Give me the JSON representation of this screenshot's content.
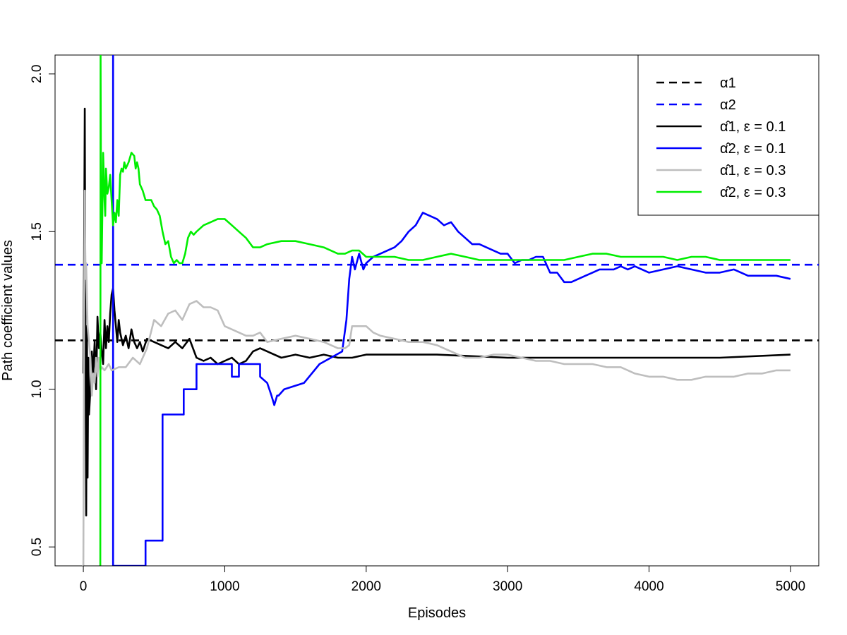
{
  "chart_data": {
    "type": "line",
    "title": "",
    "xlabel": "Episodes",
    "ylabel": "Path coefficient values",
    "xlim": [
      -200,
      5200
    ],
    "ylim": [
      0.44,
      2.06
    ],
    "x_ticks": [
      "0",
      "1000",
      "2000",
      "3000",
      "4000",
      "5000"
    ],
    "y_ticks": [
      "0.5",
      "1.0",
      "1.5",
      "2.0"
    ],
    "legend_position": "top-right",
    "reference_lines": [
      {
        "name": "α1",
        "y": 1.155,
        "color": "#000000",
        "style": "dashed"
      },
      {
        "name": "α2",
        "y": 1.395,
        "color": "#0000ff",
        "style": "dashed"
      }
    ],
    "series": [
      {
        "name": "α̂1, ε = 0.1",
        "color": "#000000",
        "x": [
          0,
          5,
          10,
          15,
          20,
          25,
          30,
          35,
          40,
          50,
          60,
          70,
          80,
          90,
          100,
          110,
          120,
          130,
          140,
          150,
          160,
          170,
          180,
          190,
          200,
          210,
          220,
          230,
          240,
          250,
          260,
          280,
          300,
          320,
          340,
          360,
          380,
          400,
          420,
          450,
          500,
          550,
          600,
          650,
          700,
          750,
          800,
          850,
          900,
          950,
          1000,
          1050,
          1100,
          1150,
          1200,
          1250,
          1300,
          1400,
          1500,
          1600,
          1700,
          1800,
          1900,
          2000,
          2500,
          3000,
          3500,
          4000,
          4500,
          5000
        ],
        "y": [
          1.05,
          1.4,
          1.89,
          1.15,
          0.6,
          1.2,
          0.72,
          1.1,
          0.92,
          1.0,
          1.12,
          1.05,
          1.15,
          1.0,
          1.23,
          1.13,
          1.18,
          1.12,
          1.08,
          1.22,
          1.13,
          1.2,
          1.15,
          1.24,
          1.3,
          1.32,
          1.25,
          1.2,
          1.15,
          1.22,
          1.18,
          1.14,
          1.17,
          1.13,
          1.19,
          1.15,
          1.13,
          1.15,
          1.12,
          1.16,
          1.15,
          1.14,
          1.13,
          1.15,
          1.13,
          1.16,
          1.1,
          1.09,
          1.1,
          1.08,
          1.09,
          1.1,
          1.08,
          1.09,
          1.12,
          1.13,
          1.12,
          1.1,
          1.11,
          1.1,
          1.11,
          1.1,
          1.1,
          1.11,
          1.11,
          1.1,
          1.1,
          1.1,
          1.1,
          1.11
        ]
      },
      {
        "name": "α̂2, ε = 0.1",
        "color": "#0000ff",
        "x": [
          210,
          210,
          215,
          440,
          440,
          560,
          560,
          710,
          710,
          800,
          800,
          820,
          820,
          950,
          950,
          1050,
          1050,
          1100,
          1100,
          1250,
          1250,
          1300,
          1330,
          1350,
          1370,
          1380,
          1420,
          1420,
          1560,
          1560,
          1670,
          1670,
          1830,
          1860,
          1880,
          1900,
          1920,
          1950,
          1980,
          2000,
          2050,
          2100,
          2150,
          2200,
          2250,
          2300,
          2350,
          2400,
          2450,
          2500,
          2550,
          2600,
          2650,
          2700,
          2750,
          2800,
          2850,
          2900,
          2950,
          3000,
          3050,
          3100,
          3150,
          3200,
          3250,
          3300,
          3350,
          3400,
          3450,
          3500,
          3550,
          3600,
          3650,
          3700,
          3750,
          3800,
          3850,
          3900,
          3950,
          4000,
          4100,
          4200,
          4300,
          4400,
          4500,
          4600,
          4700,
          4800,
          4900,
          5000
        ],
        "y": [
          2.06,
          0.44,
          0.44,
          0.44,
          0.52,
          0.52,
          0.92,
          0.92,
          1.0,
          1.0,
          1.08,
          1.08,
          1.08,
          1.08,
          1.08,
          1.08,
          1.04,
          1.04,
          1.08,
          1.08,
          1.04,
          1.02,
          0.98,
          0.95,
          0.98,
          0.98,
          1.0,
          1.0,
          1.02,
          1.02,
          1.08,
          1.08,
          1.12,
          1.22,
          1.35,
          1.42,
          1.38,
          1.43,
          1.38,
          1.4,
          1.42,
          1.43,
          1.44,
          1.45,
          1.47,
          1.5,
          1.52,
          1.56,
          1.55,
          1.54,
          1.52,
          1.53,
          1.5,
          1.48,
          1.46,
          1.46,
          1.45,
          1.44,
          1.43,
          1.43,
          1.4,
          1.41,
          1.41,
          1.42,
          1.42,
          1.37,
          1.37,
          1.34,
          1.34,
          1.35,
          1.36,
          1.37,
          1.38,
          1.38,
          1.38,
          1.39,
          1.38,
          1.39,
          1.38,
          1.37,
          1.38,
          1.39,
          1.38,
          1.37,
          1.37,
          1.38,
          1.36,
          1.36,
          1.36,
          1.35
        ]
      },
      {
        "name": "α̂1, ε = 0.3",
        "color": "#bebebe",
        "x": [
          0,
          5,
          10,
          15,
          20,
          25,
          30,
          40,
          50,
          60,
          70,
          80,
          90,
          100,
          110,
          120,
          130,
          150,
          180,
          200,
          250,
          300,
          350,
          400,
          450,
          500,
          550,
          600,
          650,
          700,
          750,
          800,
          850,
          900,
          950,
          1000,
          1050,
          1100,
          1150,
          1200,
          1250,
          1300,
          1400,
          1500,
          1600,
          1700,
          1800,
          1850,
          1880,
          1900,
          2000,
          2050,
          2100,
          2200,
          2300,
          2400,
          2500,
          2600,
          2700,
          2800,
          2900,
          3000,
          3100,
          3200,
          3300,
          3400,
          3500,
          3600,
          3700,
          3800,
          3900,
          4000,
          4100,
          4200,
          4300,
          4400,
          4500,
          4600,
          4700,
          4800,
          4900,
          5000
        ],
        "y": [
          0.44,
          1.2,
          1.63,
          1.35,
          1.4,
          1.3,
          1.2,
          1.15,
          1.1,
          0.98,
          1.05,
          1.02,
          1.1,
          1.04,
          1.1,
          1.06,
          1.07,
          1.06,
          1.08,
          1.06,
          1.07,
          1.07,
          1.1,
          1.08,
          1.13,
          1.22,
          1.2,
          1.24,
          1.25,
          1.22,
          1.27,
          1.28,
          1.26,
          1.26,
          1.25,
          1.2,
          1.19,
          1.18,
          1.17,
          1.17,
          1.18,
          1.15,
          1.16,
          1.17,
          1.16,
          1.15,
          1.13,
          1.13,
          1.14,
          1.2,
          1.2,
          1.18,
          1.17,
          1.16,
          1.15,
          1.15,
          1.14,
          1.12,
          1.1,
          1.1,
          1.11,
          1.11,
          1.1,
          1.09,
          1.09,
          1.08,
          1.08,
          1.08,
          1.07,
          1.07,
          1.05,
          1.04,
          1.04,
          1.03,
          1.03,
          1.04,
          1.04,
          1.04,
          1.05,
          1.05,
          1.06,
          1.06
        ]
      },
      {
        "name": "α̂2, ε = 0.3",
        "color": "#00ee00",
        "x": [
          120,
          122,
          125,
          130,
          140,
          150,
          155,
          160,
          170,
          180,
          190,
          200,
          210,
          220,
          230,
          240,
          250,
          260,
          270,
          280,
          290,
          300,
          320,
          340,
          360,
          370,
          380,
          390,
          400,
          420,
          440,
          460,
          480,
          500,
          520,
          540,
          560,
          580,
          600,
          620,
          640,
          660,
          680,
          700,
          720,
          740,
          760,
          780,
          800,
          850,
          900,
          950,
          1000,
          1050,
          1100,
          1150,
          1200,
          1250,
          1300,
          1400,
          1500,
          1600,
          1700,
          1800,
          1850,
          1900,
          1950,
          2000,
          2100,
          2200,
          2300,
          2400,
          2500,
          2600,
          2700,
          2800,
          2900,
          3000,
          3100,
          3200,
          3300,
          3400,
          3500,
          3600,
          3700,
          3800,
          3900,
          4000,
          4100,
          4200,
          4300,
          4400,
          4500,
          4600,
          4700,
          4800,
          4900,
          5000
        ],
        "y": [
          0.44,
          2.06,
          1.6,
          1.4,
          1.75,
          1.6,
          1.55,
          1.7,
          1.62,
          1.64,
          1.68,
          1.6,
          1.52,
          1.56,
          1.53,
          1.6,
          1.55,
          1.68,
          1.7,
          1.69,
          1.72,
          1.7,
          1.72,
          1.75,
          1.74,
          1.7,
          1.72,
          1.7,
          1.65,
          1.63,
          1.6,
          1.6,
          1.6,
          1.58,
          1.57,
          1.55,
          1.5,
          1.46,
          1.47,
          1.42,
          1.4,
          1.41,
          1.4,
          1.4,
          1.43,
          1.48,
          1.5,
          1.49,
          1.5,
          1.52,
          1.53,
          1.54,
          1.54,
          1.52,
          1.5,
          1.48,
          1.45,
          1.45,
          1.46,
          1.47,
          1.47,
          1.46,
          1.45,
          1.43,
          1.43,
          1.44,
          1.44,
          1.42,
          1.42,
          1.42,
          1.41,
          1.41,
          1.42,
          1.43,
          1.42,
          1.41,
          1.41,
          1.41,
          1.41,
          1.41,
          1.41,
          1.41,
          1.42,
          1.43,
          1.43,
          1.42,
          1.42,
          1.42,
          1.42,
          1.41,
          1.42,
          1.42,
          1.41,
          1.41,
          1.41,
          1.41,
          1.41,
          1.41
        ]
      }
    ]
  }
}
